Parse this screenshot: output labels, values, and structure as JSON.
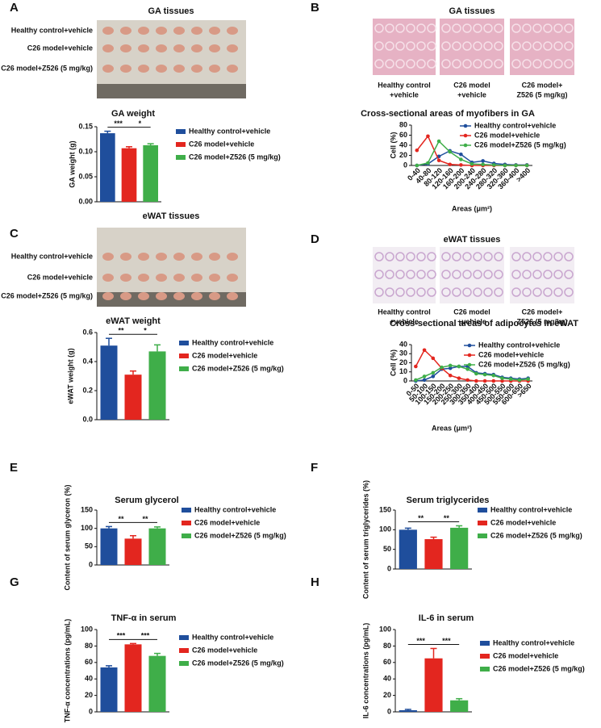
{
  "images": [
    {
      "panel": "A",
      "title": "GA tissues",
      "labels": [
        "Healthy control+vehicle",
        "C26 model+vehicle",
        "C26 model+Z526 (5 mg/kg)"
      ]
    },
    {
      "panel": "B",
      "title": "GA tissues",
      "labels": [
        [
          "Healthy control",
          "+vehicle"
        ],
        [
          "C26 model",
          "+vehicle"
        ],
        [
          "C26 model+",
          "Z526 (5 mg/kg)"
        ]
      ]
    },
    {
      "panel": "C",
      "title": "eWAT tissues",
      "labels": [
        "Healthy control+vehicle",
        "C26 model+vehicle",
        "C26 model+Z526 (5 mg/kg)"
      ]
    },
    {
      "panel": "D",
      "title": "eWAT tissues",
      "labels": [
        [
          "Healthy control",
          "+vehicle"
        ],
        [
          "C26 model",
          "+vehicle"
        ],
        [
          "C26 model+",
          "Z526 (5 mg/kg)"
        ]
      ]
    }
  ],
  "chart_data": [
    {
      "type": "bar",
      "title": "GA weight",
      "ylabel": "GA weight (g)",
      "categories": [
        "Healthy control+vehicle",
        "C26 model+vehicle",
        "C26 model+Z526 (5 mg/kg)"
      ],
      "colors": [
        "#1f4e9c",
        "#e3261f",
        "#3fae49"
      ],
      "values": [
        0.137,
        0.107,
        0.113
      ],
      "errors": [
        0.004,
        0.003,
        0.003
      ],
      "significance": [
        "***",
        "*"
      ],
      "ylim": [
        0,
        0.15
      ],
      "yticks": [
        {
          "value": 0,
          "label": "0.00"
        },
        0.05,
        {
          "value": 0.1,
          "label": "0.10"
        },
        0.15
      ]
    },
    {
      "type": "line",
      "title": "Cross-sectional areas of myofibers in GA",
      "ylabel": "Cell (%)",
      "xlabel": "Areas (μm²)",
      "categories": [
        "0-40",
        "40-80",
        "80-120",
        "120-160",
        "160-200",
        "200-240",
        "240-280",
        "280-320",
        "320-360",
        "360-400",
        ">400"
      ],
      "series": [
        {
          "name": "Healthy control+vehicle",
          "color": "#1f4e9c",
          "values": [
            0,
            3,
            18,
            29,
            22,
            6,
            9,
            4,
            2,
            1,
            1
          ]
        },
        {
          "name": "C26 model+vehicle",
          "color": "#e3261f",
          "values": [
            30,
            58,
            10,
            2,
            1,
            0,
            0,
            0,
            0,
            0,
            0
          ]
        },
        {
          "name": "C26 model+Z526 (5 mg/kg)",
          "color": "#3fae49",
          "values": [
            0,
            5,
            48,
            27,
            12,
            3,
            2,
            1,
            0,
            0,
            0
          ]
        }
      ],
      "ylim": [
        0,
        80
      ],
      "yticks": [
        0,
        20,
        40,
        60,
        80
      ]
    },
    {
      "type": "bar",
      "title": "eWAT weight",
      "ylabel": "eWAT weight (g)",
      "categories": [
        "Healthy control+vehicle",
        "C26 model+vehicle",
        "C26 model+Z526 (5 mg/kg)"
      ],
      "colors": [
        "#1f4e9c",
        "#e3261f",
        "#3fae49"
      ],
      "values": [
        0.51,
        0.31,
        0.47
      ],
      "errors": [
        0.05,
        0.025,
        0.045
      ],
      "significance": [
        "**",
        "*"
      ],
      "ylim": [
        0,
        0.6
      ],
      "yticks": [
        {
          "value": 0,
          "label": "0.0"
        },
        0.2,
        0.4,
        0.6
      ]
    },
    {
      "type": "line",
      "title": "Cross-sectional areas of adipocytes in eWAT",
      "ylabel": "Cell (%)",
      "xlabel": "Areas (μm²)",
      "categories": [
        "0-50",
        "50-100",
        "100-150",
        "150-200",
        "200-250",
        "250-300",
        "300-350",
        "350-400",
        "400-450",
        "450-500",
        "500-550",
        "550-600",
        "600-650",
        ">650"
      ],
      "series": [
        {
          "name": "Healthy control+vehicle",
          "color": "#1f4e9c",
          "values": [
            0,
            1,
            5,
            13,
            14,
            16,
            16,
            9,
            8,
            7,
            4,
            3,
            2,
            3
          ]
        },
        {
          "name": "C26 model+vehicle",
          "color": "#e3261f",
          "values": [
            16,
            34,
            25,
            14,
            6,
            3,
            1,
            0,
            0,
            0,
            0,
            0,
            0,
            0
          ]
        },
        {
          "name": "C26 model+Z526 (5 mg/kg)",
          "color": "#3fae49",
          "values": [
            1,
            5,
            9,
            15,
            17,
            16,
            13,
            8,
            7,
            6,
            3,
            2,
            1,
            2
          ]
        }
      ],
      "ylim": [
        0,
        40
      ],
      "yticks": [
        0,
        10,
        20,
        30,
        40
      ]
    },
    {
      "type": "bar",
      "panel": "E",
      "title": "Serum glycerol",
      "ylabel": "Content of serum glyceron (%)",
      "categories": [
        "Healthy control+vehicle",
        "C26 model+vehicle",
        "C26 model+Z526 (5 mg/kg)"
      ],
      "colors": [
        "#1f4e9c",
        "#e3261f",
        "#3fae49"
      ],
      "values": [
        100,
        72,
        100
      ],
      "errors": [
        5,
        8,
        4
      ],
      "significance": [
        "**",
        "**"
      ],
      "ylim": [
        0,
        150
      ],
      "yticks": [
        0,
        50,
        100,
        150
      ]
    },
    {
      "type": "bar",
      "panel": "F",
      "title": "Serum triglycerides",
      "ylabel": "Content of serum triglycerides (%)",
      "categories": [
        "Healthy control+vehicle",
        "C26 model+vehicle",
        "C26 model+Z526 (5 mg/kg)"
      ],
      "colors": [
        "#1f4e9c",
        "#e3261f",
        "#3fae49"
      ],
      "values": [
        100,
        76,
        105
      ],
      "errors": [
        4,
        5,
        5
      ],
      "significance": [
        "**",
        "**"
      ],
      "ylim": [
        0,
        150
      ],
      "yticks": [
        0,
        50,
        100,
        150
      ]
    },
    {
      "type": "bar",
      "panel": "G",
      "title": "TNF-α in serum",
      "ylabel": "TNF-α concentrations (pg/mL)",
      "categories": [
        "Healthy control+vehicle",
        "C26 model+vehicle",
        "C26 model+Z526 (5 mg/kg)"
      ],
      "colors": [
        "#1f4e9c",
        "#e3261f",
        "#3fae49"
      ],
      "values": [
        54,
        82,
        68
      ],
      "errors": [
        2,
        1,
        3
      ],
      "significance": [
        "***",
        "***"
      ],
      "ylim": [
        0,
        100
      ],
      "yticks": [
        0,
        20,
        40,
        60,
        80,
        100
      ]
    },
    {
      "type": "bar",
      "panel": "H",
      "title": "IL-6 in serum",
      "ylabel": "IL-6 concentrations (pg/mL)",
      "categories": [
        "Healthy control+vehicle",
        "C26 model+vehicle",
        "C26 model+Z526 (5 mg/kg)"
      ],
      "colors": [
        "#1f4e9c",
        "#e3261f",
        "#3fae49"
      ],
      "values": [
        2,
        65,
        14
      ],
      "errors": [
        1,
        12,
        2
      ],
      "significance": [
        "***",
        "***"
      ],
      "ylim": [
        0,
        100
      ],
      "yticks": [
        0,
        20,
        40,
        60,
        80,
        100
      ]
    }
  ]
}
